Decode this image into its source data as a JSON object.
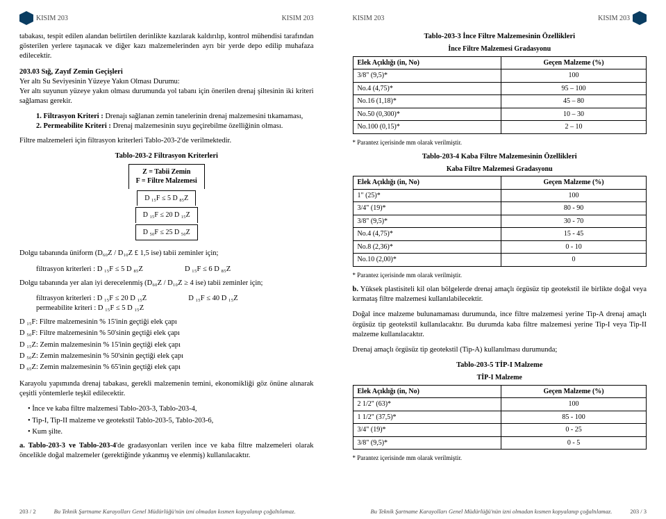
{
  "header": {
    "section": "KISIM 203"
  },
  "left": {
    "p1": "tabakası, tespit edilen alandan belirtilen derinlikte kazılarak kaldırılıp, kontrol mühendisi tarafından gösterilen yerlere taşınacak ve diğer kazı malzemelerinden ayrı bir yerde depo edilip muhafaza edilecektir.",
    "sec_no": "203.03 Sığ, Zayıf Zemin Geçişleri",
    "sec_sub": "Yer altı Su Seviyesinin Yüzeye Yakın Olması Durumu:",
    "sec_text": "Yer altı suyunun yüzeye yakın olması durumunda yol tabanı için önerilen drenaj şiltesinin iki kriteri sağlaması gerekir.",
    "k1_label": "1. Filtrasyon Kriteri :",
    "k1_text": " Drenajı sağlanan zemin tanelerinin drenaj malzemesini tıkamaması,",
    "k2_label": "2. Permeabilite Kriteri :",
    "k2_text": " Drenaj malzemesinin suyu geçirebilme özelliğinin olması.",
    "filtre_ref": "Filtre malzemeleri için filtrasyon kriterleri Tablo-203-2'de verilmektedir.",
    "t2_caption": "Tablo-203-2 Filtrasyon Kriterleri",
    "t2_legend1": "Z = Tabii Zemin",
    "t2_legend2": "F = Filtre Malzemesi",
    "t2_r1": "D ₁₅F ≤ 5 D ₈₅Z",
    "t2_r2": "D ₁₅F ≤ 20 D ₁₅Z",
    "t2_r3": "D ₅₀F ≤ 25 D ₅₀Z",
    "uniform_text": "Dolgu tabanında üniform (D₆₀Z / D₁₀Z £ 1,5 ise) tabii zeminler için;",
    "uniform_k1": "filtrasyon kriterleri :  D ₁₅F ≤ 5 D ₈₅Z",
    "uniform_k2": "D ₁₅F ≤ 6 D ₈₅Z",
    "derecelenmi_text": "Dolgu tabanında yer alan iyi derecelenmiş (D₆₀Z / D₁₀Z ≥ 4 ise) tabii zeminler için;",
    "dere_k1": "filtrasyon kriterleri :  D ₁₅F ≤ 20 D ₁₅Z",
    "dere_k2": "D ₁₅F ≤ 40 D ₁₅Z",
    "dere_perm": "permeabilite kriteri : D ₁₅F ≤ 5 D ₁₅Z",
    "def1": "D ₁₅F: Filtre malzemesinin % 15'inin geçtiği elek çapı",
    "def2": "D ₅₀F: Filtre malzemesinin % 50'sinin geçtiği elek çapı",
    "def3": "D ₁₅Z: Zemin malzemesinin % 15'inin geçtiği elek çapı",
    "def4": "D ₅₀Z: Zemin malzemesinin % 50'sinin geçtiği elek çapı",
    "def5": "D ₆₅Z: Zemin malzemesinin % 65'inin geçtiği elek çapı",
    "karayolu": "Karayolu yapımında drenaj tabakası, gerekli malzemenin temini, ekonomikliği göz önüne alınarak çeşitli yöntemlerle teşkil edilecektir.",
    "b1": "İnce ve kaba filtre malzemesi Tablo-203-3, Tablo-203-4,",
    "b2": "Tip-I, Tip-II  malzeme ve geotekstil Tablo-203-5, Tablo-203-6,",
    "b3": "Kum şilte.",
    "a_note_label": "a. Tablo-203-3 ve Tablo-203-4",
    "a_note_text": "'de gradasyonları verilen ince ve kaba filtre malzemeleri olarak öncelikle doğal malzemeler (gerektiğinde yıkanmış ve elenmiş) kullanılacaktır."
  },
  "right": {
    "t3_caption": "Tablo-203-3 İnce Filtre Malzemesinin Özellikleri",
    "t3_sub": "İnce Filtre Malzemesi Gradasyonu",
    "col_elek": "Elek Açıklığı (in, No)",
    "col_gecen": "Geçen Malzeme (%)",
    "t3_rows": [
      [
        "3/8\" (9,5)*",
        "100"
      ],
      [
        "No.4  (4,75)*",
        "95 – 100"
      ],
      [
        "No.16 (1,18)*",
        "45 – 80"
      ],
      [
        "No.50 (0,300)*",
        "10 – 30"
      ],
      [
        "No.100 (0,15)*",
        "2 – 10"
      ]
    ],
    "parantez": "* Parantez içerisinde mm olarak verilmiştir.",
    "t4_caption": "Tablo-203-4 Kaba Filtre Malzemesinin Özellikleri",
    "t4_sub": "Kaba Filtre Malzemesi Gradasyonu",
    "t4_rows": [
      [
        "1\" (25)*",
        "100"
      ],
      [
        "3/4\" (19)*",
        "80 - 90"
      ],
      [
        "3/8\" (9,5)*",
        "30 - 70"
      ],
      [
        "No.4 (4,75)*",
        "15 - 45"
      ],
      [
        "No.8 (2,36)*",
        "0 - 10"
      ],
      [
        "No.10 (2,00)*",
        "0"
      ]
    ],
    "b_note_label": "b.",
    "b_note_text": " Yüksek plastisiteli kil olan bölgelerde drenaj amaçlı örgüsüz tip geotekstil ile birlikte doğal veya kırmataş filtre malzemesi kullanılabilecektir.",
    "dogal_p1": "Doğal ince malzeme bulunamaması durumunda, ince filtre malzemesi yerine Tip-A drenaj amaçlı örgüsüz tip geotekstil kullanılacaktır. Bu durumda kaba filtre malzemesi yerine Tip-I veya Tip-II malzeme kullanılacaktır.",
    "dogal_p2": "Drenaj amaçlı örgüsüz tip geotekstil (Tip-A) kullanılması durumunda;",
    "t5_caption": "Tablo-203-5 TİP-I Malzeme",
    "t5_sub": "TİP-I Malzeme",
    "t5_rows": [
      [
        "2 1/2\" (63)*",
        "100"
      ],
      [
        "1 1/2\" (37,5)*",
        "85 - 100"
      ],
      [
        "3/4\" (19)*",
        "0 - 25"
      ],
      [
        "3/8\" (9,5)*",
        "0 - 5"
      ]
    ]
  },
  "footer": {
    "left_pn": "203 / 2",
    "right_pn": "203 / 3",
    "center": "Bu Teknik Şartname Karayolları Genel Müdürlüğü'nün\nizni olmadan kısmen kopyalanıp çoğaltılamaz."
  }
}
